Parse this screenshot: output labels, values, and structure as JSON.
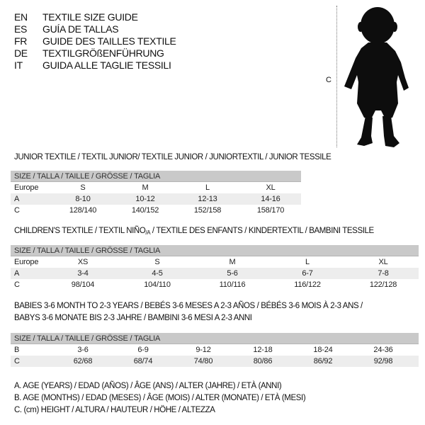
{
  "languages": [
    {
      "code": "EN",
      "name": "TEXTILE SIZE GUIDE"
    },
    {
      "code": "ES",
      "name": "GUÍA DE TALLAS"
    },
    {
      "code": "FR",
      "name": "GUIDE DES TAILLES TEXTILE"
    },
    {
      "code": "DE",
      "name": "TEXTILGRÖßENFÜHRUNG"
    },
    {
      "code": "IT",
      "name": "GUIDA ALLE TAGLIE TESSILI"
    }
  ],
  "figure": {
    "measure_label": "C",
    "icon": "child-silhouette"
  },
  "junior": {
    "title": "JUNIOR TEXTILE / TEXTIL JUNIOR/ TEXTILE JUNIOR / JUNIORTEXTIL / JUNIOR TESSILE",
    "header": "SIZE / TALLA / TAILLE / GRÖSSE / TAGLIA",
    "rows": [
      {
        "label": "Europe",
        "cells": [
          "S",
          "M",
          "L",
          "XL"
        ]
      },
      {
        "label": "A",
        "cells": [
          "8-10",
          "10-12",
          "12-13",
          "14-16"
        ]
      },
      {
        "label": "C",
        "cells": [
          "128/140",
          "140/152",
          "152/158",
          "158/170"
        ]
      }
    ]
  },
  "children": {
    "title_pre": "CHILDREN'S TEXTILE / TEXTIL NIÑO",
    "title_sub": "/A",
    "title_post": " / TEXTILE DES ENFANTS / KINDERTEXTIL / BAMBINI TESSILE",
    "header": "SIZE / TALLA / TAILLE / GRÖSSE / TAGLIA",
    "rows": [
      {
        "label": "Europe",
        "cells": [
          "XS",
          "S",
          "M",
          "L",
          "XL"
        ]
      },
      {
        "label": "A",
        "cells": [
          "3-4",
          "4-5",
          "5-6",
          "6-7",
          "7-8"
        ]
      },
      {
        "label": "C",
        "cells": [
          "98/104",
          "104/110",
          "110/116",
          "116/122",
          "122/128"
        ]
      }
    ]
  },
  "babies": {
    "title_line1": "BABIES 3-6 MONTH TO 2-3 YEARS / BEBÉS 3-6 MESES A 2-3 AÑOS / BÉBÉS 3-6 MOIS À 2-3 ANS /",
    "title_line2": "BABYS 3-6 MONATE BIS 2-3 JAHRE / BAMBINI 3-6 MESI A 2-3 ANNI",
    "header": "SIZE / TALLA / TAILLE / GRÖSSE / TAGLIA",
    "rows": [
      {
        "label": "B",
        "cells": [
          "3-6",
          "6-9",
          "9-12",
          "12-18",
          "18-24",
          "24-36"
        ]
      },
      {
        "label": "C",
        "cells": [
          "62/68",
          "68/74",
          "74/80",
          "80/86",
          "86/92",
          "92/98"
        ]
      }
    ]
  },
  "legend": [
    "A. AGE (YEARS) / EDAD (AÑOS) / ÂGE (ANS) / ALTER (JAHRE) / ETÀ (ANNI)",
    "B. AGE (MONTHS) / EDAD (MESES) / ÂGE (MOIS) / ALTER (MONATE) / ETÀ (MESI)",
    "C. (cm) HEIGHT / ALTURA / HAUTEUR / HÖHE / ALTEZZA"
  ]
}
